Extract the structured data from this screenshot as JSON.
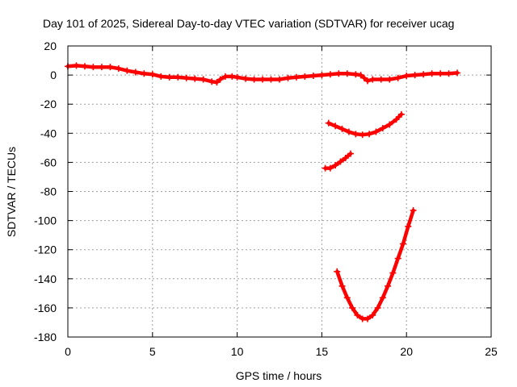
{
  "chart_data": {
    "type": "scatter",
    "title": "Day 101 of 2025, Sidereal Day-to-day VTEC variation (SDTVAR) for receiver ucag",
    "xlabel": "GPS time / hours",
    "ylabel": "SDTVAR / TECUs",
    "xlim": [
      0,
      25
    ],
    "ylim": [
      -180,
      20
    ],
    "xticks": [
      0,
      5,
      10,
      15,
      20,
      25
    ],
    "yticks": [
      20,
      0,
      -20,
      -40,
      -60,
      -80,
      -100,
      -120,
      -140,
      -160,
      -180
    ],
    "grid": true,
    "marker": "plus",
    "series_color": "#ff0000",
    "series": [
      {
        "points": [
          [
            0.0,
            6
          ],
          [
            0.5,
            6.5
          ],
          [
            1.0,
            6
          ],
          [
            1.5,
            5.5
          ],
          [
            2.0,
            5.5
          ],
          [
            2.5,
            5.5
          ],
          [
            3.0,
            4.5
          ],
          [
            3.5,
            3
          ],
          [
            4.0,
            2
          ],
          [
            4.5,
            1
          ],
          [
            5.0,
            0.5
          ],
          [
            5.5,
            -1
          ],
          [
            6.0,
            -1.5
          ],
          [
            6.5,
            -1.5
          ],
          [
            7.0,
            -2
          ],
          [
            7.5,
            -2.5
          ],
          [
            8.0,
            -3
          ],
          [
            8.5,
            -4.5
          ],
          [
            8.8,
            -5
          ],
          [
            9.0,
            -3
          ],
          [
            9.3,
            -1
          ],
          [
            9.7,
            -1
          ],
          [
            10.0,
            -1.5
          ],
          [
            10.5,
            -2.5
          ],
          [
            11.0,
            -3
          ],
          [
            11.5,
            -3
          ],
          [
            12.0,
            -3
          ],
          [
            12.5,
            -3
          ],
          [
            13.0,
            -2
          ],
          [
            13.5,
            -1.5
          ],
          [
            14.0,
            -1
          ],
          [
            14.5,
            -0.5
          ],
          [
            15.0,
            0
          ],
          [
            15.5,
            0.5
          ],
          [
            16.0,
            1
          ],
          [
            16.5,
            1
          ],
          [
            17.0,
            0.5
          ],
          [
            17.3,
            0
          ],
          [
            17.5,
            -2
          ],
          [
            17.7,
            -4
          ],
          [
            18.0,
            -3
          ],
          [
            18.5,
            -3
          ],
          [
            19.0,
            -3
          ],
          [
            19.5,
            -2
          ],
          [
            20.0,
            -0.5
          ],
          [
            20.5,
            0
          ],
          [
            21.0,
            0.5
          ],
          [
            21.5,
            1
          ],
          [
            22.0,
            1
          ],
          [
            22.5,
            1
          ],
          [
            23.0,
            1.5
          ]
        ]
      },
      {
        "points": [
          [
            15.4,
            -33
          ],
          [
            15.8,
            -35
          ],
          [
            16.2,
            -37
          ],
          [
            16.6,
            -39
          ],
          [
            17.0,
            -40.5
          ],
          [
            17.4,
            -41
          ],
          [
            17.8,
            -40.5
          ],
          [
            18.2,
            -39
          ],
          [
            18.6,
            -36.5
          ],
          [
            19.0,
            -34
          ],
          [
            19.4,
            -30.5
          ],
          [
            19.7,
            -27
          ]
        ]
      },
      {
        "points": [
          [
            15.2,
            -64
          ],
          [
            15.5,
            -64
          ],
          [
            15.8,
            -62
          ],
          [
            16.1,
            -59.5
          ],
          [
            16.4,
            -57
          ],
          [
            16.7,
            -54
          ]
        ]
      },
      {
        "points": [
          [
            15.9,
            -135
          ],
          [
            16.2,
            -145
          ],
          [
            16.5,
            -153
          ],
          [
            16.8,
            -160
          ],
          [
            17.1,
            -165
          ],
          [
            17.4,
            -167.5
          ],
          [
            17.7,
            -167.5
          ],
          [
            18.0,
            -165
          ],
          [
            18.3,
            -160
          ],
          [
            18.6,
            -153
          ],
          [
            18.9,
            -145
          ],
          [
            19.2,
            -136
          ],
          [
            19.5,
            -126
          ],
          [
            19.8,
            -116
          ],
          [
            20.1,
            -104
          ],
          [
            20.4,
            -93
          ]
        ]
      }
    ]
  }
}
